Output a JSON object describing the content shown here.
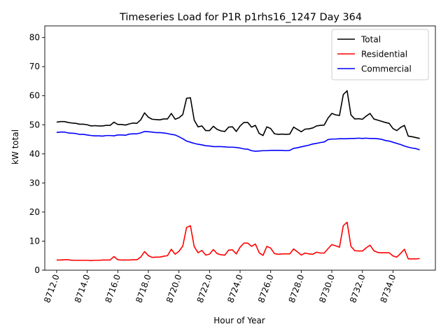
{
  "chart_data": {
    "type": "line",
    "title": "Timeseries Load for P1R p1rhs16_1247  Day 364",
    "xlabel": "Hour of Year",
    "ylabel": "kW total",
    "xlim": [
      8711.225,
      8736.775
    ],
    "ylim": [
      0,
      84
    ],
    "x_start": 8712.0,
    "x_step": 0.25,
    "xticks": [
      8712,
      8714,
      8716,
      8718,
      8720,
      8722,
      8724,
      8726,
      8728,
      8730,
      8732,
      8734
    ],
    "xtick_labels": [
      "8712.0",
      "8714.0",
      "8716.0",
      "8718.0",
      "8720.0",
      "8722.0",
      "8724.0",
      "8726.0",
      "8728.0",
      "8730.0",
      "8732.0",
      "8734.0"
    ],
    "yticks": [
      0,
      10,
      20,
      30,
      40,
      50,
      60,
      70,
      80
    ],
    "ytick_labels": [
      "0",
      "10",
      "20",
      "30",
      "40",
      "50",
      "60",
      "70",
      "80"
    ],
    "legend_position": "top-right",
    "grid": false,
    "series": [
      {
        "name": "Total",
        "color": "#000000",
        "values": [
          50.9,
          51.1,
          51.1,
          50.8,
          50.6,
          50.5,
          50.2,
          50.2,
          50.0,
          49.6,
          49.7,
          49.6,
          49.6,
          49.8,
          49.8,
          50.9,
          50.1,
          50.1,
          49.9,
          50.3,
          50.6,
          50.5,
          51.7,
          54.1,
          52.6,
          51.9,
          51.8,
          51.7,
          52.0,
          52.0,
          53.9,
          51.9,
          52.4,
          53.5,
          59.1,
          59.3,
          51.6,
          49.3,
          49.6,
          48.0,
          48.0,
          49.5,
          48.4,
          47.9,
          47.7,
          49.2,
          49.3,
          47.7,
          49.6,
          50.8,
          50.8,
          49.2,
          49.8,
          47.0,
          46.3,
          49.3,
          48.7,
          46.9,
          46.7,
          46.8,
          46.7,
          46.8,
          49.2,
          48.4,
          47.6,
          48.5,
          48.6,
          48.9,
          49.6,
          49.8,
          49.9,
          52.3,
          53.9,
          53.4,
          53.2,
          60.4,
          61.7,
          53.4,
          52.0,
          52.1,
          51.9,
          53.0,
          53.9,
          52.0,
          51.6,
          51.2,
          50.8,
          50.5,
          48.7,
          48.0,
          49.1,
          49.8,
          46.1,
          45.9,
          45.6,
          45.3
        ]
      },
      {
        "name": "Residential",
        "color": "#ff0000",
        "values": [
          3.5,
          3.5,
          3.6,
          3.6,
          3.4,
          3.4,
          3.4,
          3.4,
          3.4,
          3.3,
          3.4,
          3.4,
          3.5,
          3.5,
          3.5,
          4.7,
          3.6,
          3.5,
          3.5,
          3.5,
          3.6,
          3.6,
          4.5,
          6.4,
          5.0,
          4.4,
          4.5,
          4.5,
          4.8,
          5.0,
          7.2,
          5.5,
          6.5,
          8.3,
          14.7,
          15.3,
          8.1,
          6.0,
          6.8,
          5.2,
          5.5,
          7.1,
          5.7,
          5.3,
          5.2,
          6.9,
          7.0,
          5.6,
          7.9,
          9.3,
          9.3,
          8.2,
          9.0,
          6.0,
          5.1,
          8.2,
          7.6,
          5.7,
          5.5,
          5.6,
          5.6,
          5.6,
          7.3,
          6.3,
          5.2,
          5.9,
          5.6,
          5.5,
          6.2,
          5.9,
          5.9,
          7.4,
          8.8,
          8.4,
          7.9,
          15.3,
          16.5,
          8.2,
          6.7,
          6.6,
          6.6,
          7.7,
          8.6,
          6.7,
          6.1,
          6.0,
          6.0,
          6.0,
          4.9,
          4.5,
          5.8,
          7.2,
          3.9,
          3.9,
          3.9,
          4.0
        ]
      },
      {
        "name": "Commercial",
        "color": "#0000ff",
        "values": [
          47.4,
          47.5,
          47.5,
          47.2,
          47.1,
          47.0,
          46.7,
          46.7,
          46.5,
          46.3,
          46.2,
          46.2,
          46.1,
          46.3,
          46.3,
          46.2,
          46.5,
          46.5,
          46.4,
          46.8,
          46.9,
          46.9,
          47.2,
          47.7,
          47.6,
          47.5,
          47.3,
          47.3,
          47.2,
          47.0,
          46.7,
          46.5,
          45.9,
          45.2,
          44.4,
          44.0,
          43.6,
          43.3,
          43.1,
          42.8,
          42.7,
          42.5,
          42.5,
          42.5,
          42.4,
          42.3,
          42.3,
          42.2,
          42.0,
          41.7,
          41.6,
          41.1,
          40.9,
          41.0,
          41.1,
          41.1,
          41.2,
          41.2,
          41.2,
          41.2,
          41.1,
          41.2,
          41.9,
          42.1,
          42.4,
          42.7,
          43.0,
          43.4,
          43.6,
          43.9,
          44.1,
          44.9,
          45.1,
          45.1,
          45.2,
          45.2,
          45.2,
          45.3,
          45.3,
          45.4,
          45.3,
          45.4,
          45.3,
          45.3,
          45.2,
          45.0,
          44.6,
          44.4,
          44.0,
          43.6,
          43.2,
          42.7,
          42.3,
          42.0,
          41.8,
          41.4
        ]
      }
    ]
  }
}
